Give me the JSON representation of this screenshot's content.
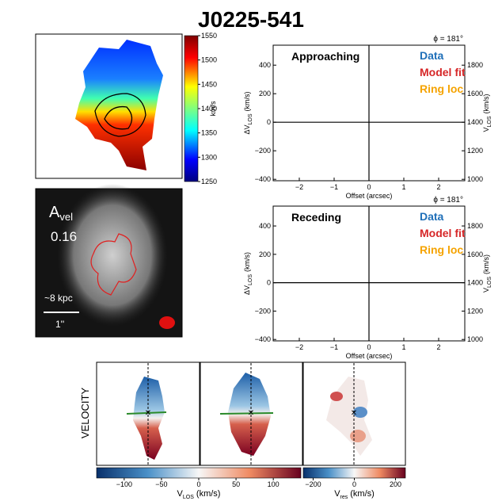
{
  "title": "J0225-541",
  "map_colorbar": {
    "lim": [
      1250,
      1550
    ],
    "ticks": [
      1250,
      1300,
      1350,
      1400,
      1450,
      1500,
      1550
    ],
    "label": "km/s"
  },
  "flux_panel": {
    "label": "A",
    "label_sub": "vel",
    "value": "0.16",
    "scale": "~8 kpc",
    "beam": "1''"
  },
  "pv_plots": [
    {
      "label": "Approaching",
      "phi": "ϕ = 181°",
      "legend": [
        {
          "name": "Data",
          "color": "#1f6fb8"
        },
        {
          "name": "Model fit",
          "color": "#d62728"
        },
        {
          "name": "Ring loc",
          "color": "#f5a300"
        }
      ],
      "xlim": [
        -2.75,
        2.75
      ],
      "xticks": [
        {
          "value": -2,
          "label": "−2"
        },
        {
          "value": -1,
          "label": "−1"
        },
        0,
        1,
        2
      ],
      "ylim": [
        -410,
        540
      ],
      "yticks": [
        {
          "value": -400,
          "label": "−400"
        },
        {
          "value": -200,
          "label": "−200"
        },
        0,
        200,
        400
      ],
      "y2lim": [
        990,
        1940
      ],
      "y2ticks": [
        1000,
        1200,
        1400,
        1600,
        1800
      ],
      "xlabel": "Offset (arcsec)",
      "ylabel": {
        "main": "ΔV",
        "sub": "LOS",
        "unit": "(km/s)"
      },
      "y2label": {
        "main": "V",
        "sub": "LOS",
        "unit": "(km/s)"
      }
    },
    {
      "label": "Receding",
      "phi": "ϕ = 181°",
      "legend": [
        {
          "name": "Data",
          "color": "#1f6fb8"
        },
        {
          "name": "Model fit",
          "color": "#d62728"
        },
        {
          "name": "Ring loc",
          "color": "#f5a300"
        }
      ],
      "xlim": [
        -2.75,
        2.75
      ],
      "xticks": [
        {
          "value": -2,
          "label": "−2"
        },
        {
          "value": -1,
          "label": "−1"
        },
        0,
        1,
        2
      ],
      "ylim": [
        -410,
        540
      ],
      "yticks": [
        {
          "value": -400,
          "label": "−400"
        },
        {
          "value": -200,
          "label": "−200"
        },
        0,
        200,
        400
      ],
      "y2lim": [
        990,
        1940
      ],
      "y2ticks": [
        1000,
        1200,
        1400,
        1600,
        1800
      ],
      "xlabel": "Offset (arcsec)",
      "ylabel": {
        "main": "ΔV",
        "sub": "LOS",
        "unit": "(km/s)"
      },
      "y2label": {
        "main": "V",
        "sub": "LOS",
        "unit": "(km/s)"
      }
    }
  ],
  "bottom": {
    "row_label": "VELOCITY",
    "colorbars": [
      {
        "lim": [
          -137,
          137
        ],
        "ticks": [
          {
            "value": -100,
            "label": "−100"
          },
          {
            "value": -50,
            "label": "−50"
          },
          0,
          50,
          100
        ],
        "label": {
          "main": "V",
          "sub": "LOS",
          "unit": "(km/s)"
        }
      },
      {
        "lim": [
          -248,
          248
        ],
        "ticks": [
          {
            "value": -200,
            "label": "−200"
          },
          0,
          200
        ],
        "label": {
          "main": "V",
          "sub": "res",
          "unit": "(km/s)"
        }
      }
    ]
  }
}
